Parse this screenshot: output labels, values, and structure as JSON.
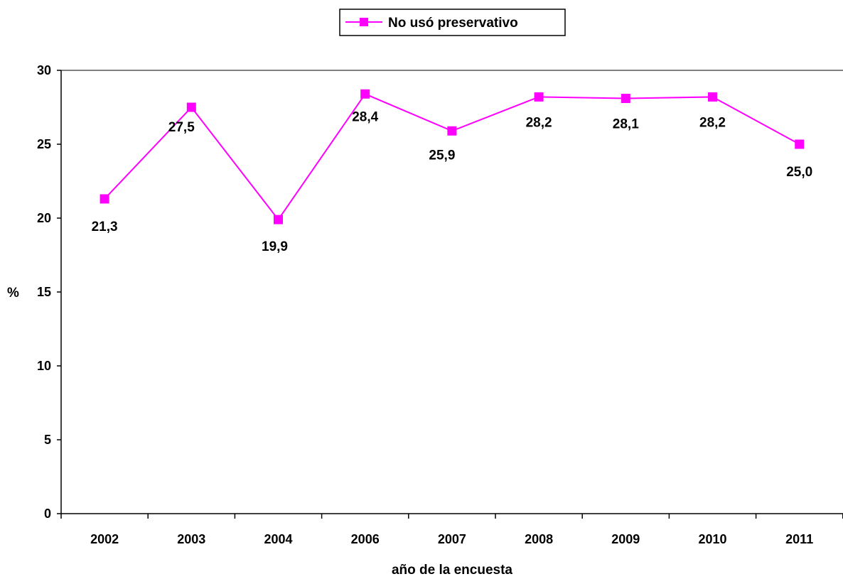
{
  "chart_data": {
    "type": "line",
    "title": "",
    "xlabel": "año de la encuesta",
    "ylabel": "%",
    "categories": [
      "2002",
      "2003",
      "2004",
      "2006",
      "2007",
      "2008",
      "2009",
      "2010",
      "2011"
    ],
    "series": [
      {
        "name": "No usó preservativo",
        "values": [
          21.3,
          27.5,
          19.9,
          28.4,
          25.9,
          28.2,
          28.1,
          28.2,
          25.0
        ],
        "labels": [
          "21,3",
          "27,5",
          "19,9",
          "28,4",
          "25,9",
          "28,2",
          "28,1",
          "28,2",
          "25,0"
        ],
        "color": "#ff00ff",
        "marker": "square"
      }
    ],
    "ylim": [
      0,
      30
    ],
    "yticks": [
      0,
      5,
      10,
      15,
      20,
      25,
      30
    ],
    "ytick_labels": [
      "0",
      "5",
      "10",
      "15",
      "20",
      "25",
      "30"
    ],
    "grid": false,
    "legend_position": "top-center"
  }
}
